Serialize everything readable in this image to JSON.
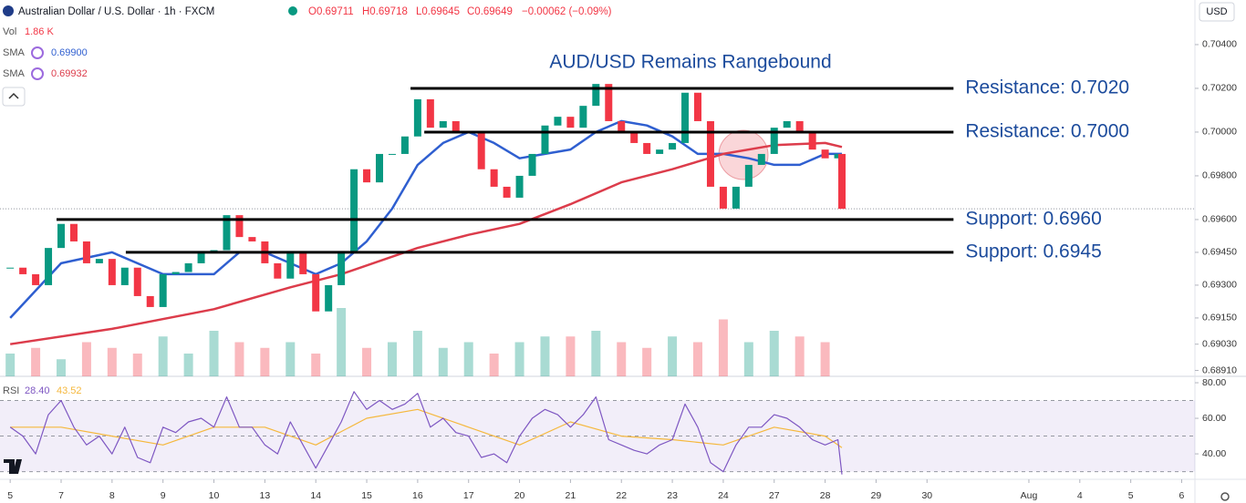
{
  "header": {
    "title": "Australian Dollar / U.S. Dollar · 1h · FXCM",
    "ohlc": [
      "O0.69711",
      "H0.69718",
      "L0.69645",
      "C0.69649",
      "−0.00062 (−0.09%)"
    ],
    "currency": "USD",
    "indicators": [
      {
        "name": "Vol",
        "value": "1.86 K"
      },
      {
        "name": "SMA",
        "value": "0.69900"
      },
      {
        "name": "SMA",
        "value": "0.69932"
      },
      {
        "name": "RSI",
        "value": "28.40",
        "value2": "43.52"
      }
    ]
  },
  "chart_data": [
    {
      "type": "candlestick",
      "title": "AUD/USD Remains Rangebound",
      "up_color": "#089981",
      "down_color": "#f23645",
      "x": [
        0,
        0.25,
        0.5,
        0.75,
        1,
        1.25,
        1.5,
        1.75,
        2,
        2.25,
        2.5,
        2.75,
        3,
        3.25,
        3.5,
        3.75,
        4,
        4.25,
        4.5,
        4.75,
        5,
        5.25,
        5.5,
        5.75,
        6,
        6.25,
        6.5,
        6.75,
        7,
        7.25,
        7.5,
        7.75,
        8,
        8.25,
        8.5,
        8.75,
        9,
        9.25,
        9.5,
        9.75,
        10,
        10.25,
        10.5,
        10.75,
        11,
        11.25,
        11.5,
        11.75,
        12,
        12.25,
        12.5,
        12.75,
        13,
        13.25,
        13.5,
        13.75,
        14,
        14.25,
        14.5,
        14.75,
        15,
        15.25,
        15.5,
        15.75,
        16,
        16.25,
        16.33
      ],
      "values": [
        0.6938,
        0.6935,
        0.693,
        0.6947,
        0.6958,
        0.695,
        0.694,
        0.6942,
        0.693,
        0.6938,
        0.6925,
        0.692,
        0.6935,
        0.6936,
        0.694,
        0.6945,
        0.6946,
        0.6962,
        0.6952,
        0.695,
        0.694,
        0.6933,
        0.6945,
        0.6935,
        0.6918,
        0.693,
        0.6945,
        0.6983,
        0.6977,
        0.699,
        0.699,
        0.6998,
        0.7015,
        0.7002,
        0.7005,
        0.7,
        0.7,
        0.6983,
        0.6975,
        0.697,
        0.698,
        0.699,
        0.7003,
        0.7007,
        0.7002,
        0.7012,
        0.7022,
        0.7005,
        0.7,
        0.6995,
        0.699,
        0.6992,
        0.6995,
        0.7018,
        0.7005,
        0.6975,
        0.6965,
        0.6975,
        0.6985,
        0.699,
        0.7002,
        0.7005,
        0.7,
        0.6992,
        0.6988,
        0.699,
        0.69649
      ],
      "series": [
        {
          "name": "SMA",
          "color": "#2f5fd0",
          "x": [
            0,
            1,
            2,
            3,
            4,
            4.5,
            5,
            5.5,
            6,
            6.5,
            7,
            7.5,
            8,
            8.5,
            9,
            9.5,
            10,
            10.5,
            11,
            11.5,
            12,
            12.5,
            13,
            13.5,
            14,
            14.5,
            15,
            15.5,
            16,
            16.33
          ],
          "values": [
            0.6915,
            0.694,
            0.6945,
            0.6935,
            0.6935,
            0.6945,
            0.6945,
            0.694,
            0.6935,
            0.694,
            0.695,
            0.6965,
            0.6985,
            0.6995,
            0.7,
            0.6995,
            0.6988,
            0.699,
            0.6992,
            0.7,
            0.7005,
            0.7003,
            0.6998,
            0.699,
            0.699,
            0.6988,
            0.6985,
            0.6985,
            0.699,
            0.699
          ]
        },
        {
          "name": "SMA",
          "color": "#dc3c4b",
          "x": [
            0,
            2,
            4,
            5.5,
            6.5,
            8,
            9,
            10,
            11,
            12,
            13,
            14,
            15,
            16,
            16.33
          ],
          "values": [
            0.6903,
            0.691,
            0.6919,
            0.6929,
            0.6935,
            0.6947,
            0.6953,
            0.6958,
            0.6967,
            0.6977,
            0.6983,
            0.699,
            0.6994,
            0.6995,
            0.69932
          ]
        }
      ],
      "volume": {
        "ylim": [
          0,
          8
        ],
        "x": [
          0,
          0.5,
          1,
          1.5,
          2,
          2.5,
          3,
          3.5,
          4,
          4.5,
          5,
          5.5,
          6,
          6.5,
          7,
          7.5,
          8,
          8.5,
          9,
          9.5,
          10,
          10.5,
          11,
          11.5,
          12,
          12.5,
          13,
          13.5,
          14,
          14.5,
          15,
          15.5,
          16
        ],
        "values": [
          2,
          2.5,
          1.5,
          3,
          2.5,
          2,
          3.5,
          2,
          4,
          3,
          2.5,
          3,
          2,
          6,
          2.5,
          3,
          4,
          2.5,
          3,
          2,
          3,
          3.5,
          3.5,
          4,
          3,
          2.5,
          3.5,
          3,
          5,
          3,
          4,
          3.5,
          3
        ]
      },
      "levels": [
        {
          "value": 0.702,
          "label": "Resistance: 0.7020",
          "from": 7.86,
          "to": 18.52
        },
        {
          "value": 0.7,
          "label": "Resistance: 0.7000",
          "from": 8.13,
          "to": 18.52
        },
        {
          "value": 0.696,
          "label": "Support: 0.6960",
          "from": 0.91,
          "to": 18.52
        },
        {
          "value": 0.6945,
          "label": "Support: 0.6945",
          "from": 2.27,
          "to": 18.52
        }
      ],
      "xlim": [
        -0.2,
        23.26
      ],
      "ylim": [
        0.68883,
        0.70604
      ],
      "yticks": [
        {
          "value": 0.704,
          "label": "0.70400"
        },
        {
          "value": 0.702,
          "label": "0.70200"
        },
        {
          "value": 0.7,
          "label": "0.70000"
        },
        {
          "value": 0.698,
          "label": "0.69800"
        },
        {
          "value": 0.696,
          "label": "0.69600"
        },
        {
          "value": 0.6945,
          "label": "0.69450"
        },
        {
          "value": 0.693,
          "label": "0.69300"
        },
        {
          "value": 0.6915,
          "label": "0.69150"
        },
        {
          "value": 0.6903,
          "label": "0.69030"
        },
        {
          "value": 0.6891,
          "label": "0.68910"
        }
      ]
    },
    {
      "type": "line",
      "series": [
        {
          "name": "RSI",
          "color": "#7e57c2",
          "x": [
            0,
            0.25,
            0.5,
            0.75,
            1,
            1.25,
            1.5,
            1.75,
            2,
            2.25,
            2.5,
            2.75,
            3,
            3.25,
            3.5,
            3.75,
            4,
            4.25,
            4.5,
            4.75,
            5,
            5.25,
            5.5,
            5.75,
            6,
            6.25,
            6.5,
            6.75,
            7,
            7.25,
            7.5,
            7.75,
            8,
            8.25,
            8.5,
            8.75,
            9,
            9.25,
            9.5,
            9.75,
            10,
            10.25,
            10.5,
            10.75,
            11,
            11.25,
            11.5,
            11.75,
            12,
            12.25,
            12.5,
            12.75,
            13,
            13.25,
            13.5,
            13.75,
            14,
            14.25,
            14.5,
            14.75,
            15,
            15.25,
            15.5,
            15.75,
            16,
            16.25,
            16.33
          ],
          "values": [
            55,
            50,
            40,
            62,
            70,
            55,
            45,
            50,
            40,
            55,
            38,
            35,
            55,
            52,
            58,
            60,
            55,
            72,
            55,
            55,
            45,
            40,
            58,
            45,
            32,
            45,
            58,
            75,
            65,
            70,
            65,
            68,
            74,
            55,
            60,
            52,
            50,
            38,
            40,
            35,
            50,
            60,
            65,
            62,
            55,
            62,
            72,
            48,
            45,
            42,
            40,
            45,
            48,
            68,
            55,
            35,
            30,
            45,
            55,
            55,
            62,
            60,
            55,
            48,
            45,
            48,
            28.4
          ]
        },
        {
          "color": "#f5b83d",
          "x": [
            0,
            1,
            2,
            3,
            4,
            5,
            6,
            7,
            8,
            9,
            10,
            11,
            12,
            13,
            14,
            15,
            16,
            16.33
          ],
          "values": [
            55,
            55,
            50,
            45,
            55,
            55,
            45,
            60,
            65,
            55,
            45,
            58,
            50,
            48,
            45,
            55,
            50,
            43.52
          ]
        }
      ],
      "levels": [
        30,
        50,
        70
      ],
      "xlim": [
        -0.2,
        23.26
      ],
      "ylim": [
        26.2,
        83.6
      ],
      "yticks": [
        {
          "value": 80,
          "label": "80.00"
        },
        {
          "value": 60,
          "label": "60.00"
        },
        {
          "value": 40,
          "label": "40.00"
        }
      ],
      "xticks": [
        {
          "value": 0,
          "label": "5"
        },
        {
          "value": 1,
          "label": "7"
        },
        {
          "value": 2,
          "label": "8"
        },
        {
          "value": 3,
          "label": "9"
        },
        {
          "value": 4,
          "label": "10"
        },
        {
          "value": 5,
          "label": "13"
        },
        {
          "value": 6,
          "label": "14"
        },
        {
          "value": 7,
          "label": "15"
        },
        {
          "value": 8,
          "label": "16"
        },
        {
          "value": 9,
          "label": "17"
        },
        {
          "value": 10,
          "label": "20"
        },
        {
          "value": 11,
          "label": "21"
        },
        {
          "value": 12,
          "label": "22"
        },
        {
          "value": 13,
          "label": "23"
        },
        {
          "value": 14,
          "label": "24"
        },
        {
          "value": 15,
          "label": "27"
        },
        {
          "value": 16,
          "label": "28"
        },
        {
          "value": 17,
          "label": "29"
        },
        {
          "value": 18,
          "label": "30"
        },
        {
          "value": 20,
          "label": "Aug"
        },
        {
          "value": 21,
          "label": "4"
        },
        {
          "value": 22,
          "label": "5"
        },
        {
          "value": 23,
          "label": "6"
        }
      ]
    }
  ]
}
